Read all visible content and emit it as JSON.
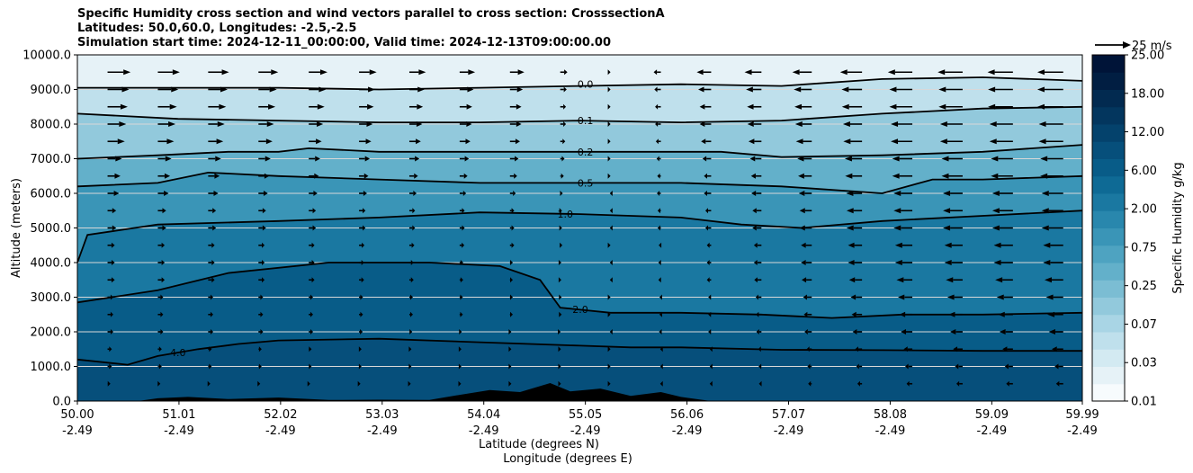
{
  "title": {
    "line1": "Specific Humidity cross section and wind vectors parallel to cross section: CrosssectionA",
    "line2": "Latitudes: 50.0,60.0, Longitudes: -2.5,-2.5",
    "line3": "Simulation start time: 2024-12-11_00:00:00, Valid time: 2024-12-13T09:00:00.00"
  },
  "colors": {
    "level_palette": [
      "#f7fbfd",
      "#e6f2f7",
      "#d3eaf2",
      "#bfe0ec",
      "#a9d5e5",
      "#92c9dc",
      "#7bbdd3",
      "#63b0ca",
      "#4ea3c1",
      "#3a95b7",
      "#2987ad",
      "#1a78a1",
      "#0e6a95",
      "#085c88",
      "#064f7b",
      "#04426c",
      "#03365e",
      "#022a50",
      "#011e42",
      "#001438"
    ],
    "terrain": "#000000",
    "contour": "#000000"
  },
  "chart_data": {
    "type": "heatmap",
    "title": "Specific Humidity cross section and wind vectors parallel to cross section: CrosssectionA",
    "xlabel_lat": "Latitude (degrees N)",
    "xlabel_lon": "Longitude (degrees E)",
    "ylabel": "Altitude (meters)",
    "xlim": [
      50.0,
      59.99
    ],
    "ylim": [
      0,
      10000
    ],
    "x_ticks": [
      {
        "lat": "50.00",
        "lon": "-2.49",
        "v": 50.0
      },
      {
        "lat": "51.01",
        "lon": "-2.49",
        "v": 51.01
      },
      {
        "lat": "52.02",
        "lon": "-2.49",
        "v": 52.02
      },
      {
        "lat": "53.03",
        "lon": "-2.49",
        "v": 53.03
      },
      {
        "lat": "54.04",
        "lon": "-2.49",
        "v": 54.04
      },
      {
        "lat": "55.05",
        "lon": "-2.49",
        "v": 55.05
      },
      {
        "lat": "56.06",
        "lon": "-2.49",
        "v": 56.06
      },
      {
        "lat": "57.07",
        "lon": "-2.49",
        "v": 57.07
      },
      {
        "lat": "58.08",
        "lon": "-2.49",
        "v": 58.08
      },
      {
        "lat": "59.09",
        "lon": "-2.49",
        "v": 59.09
      },
      {
        "lat": "59.99",
        "lon": "-2.49",
        "v": 59.99
      }
    ],
    "y_ticks": [
      {
        "v": 0,
        "label": "0.0"
      },
      {
        "v": 1000,
        "label": "1000.0"
      },
      {
        "v": 2000,
        "label": "2000.0"
      },
      {
        "v": 3000,
        "label": "3000.0"
      },
      {
        "v": 4000,
        "label": "4000.0"
      },
      {
        "v": 5000,
        "label": "5000.0"
      },
      {
        "v": 6000,
        "label": "6000.0"
      },
      {
        "v": 7000,
        "label": "7000.0"
      },
      {
        "v": 8000,
        "label": "8000.0"
      },
      {
        "v": 9000,
        "label": "9000.0"
      },
      {
        "v": 10000,
        "label": "10000.0"
      }
    ],
    "grid_y": true,
    "colorbar": {
      "label": "Specific Humidity g/kg",
      "tick_labels": [
        "0.01",
        "0.03",
        "0.07",
        "0.25",
        "0.75",
        "2.00",
        "6.00",
        "12.00",
        "18.00",
        "25.00"
      ],
      "n_levels": 20
    },
    "contour_lines": [
      {
        "level": "4.0",
        "label_at": [
          51.0,
          1400
        ],
        "points": [
          [
            50,
            1200
          ],
          [
            50.5,
            1050
          ],
          [
            50.8,
            1300
          ],
          [
            51.2,
            1500
          ],
          [
            51.6,
            1650
          ],
          [
            52,
            1750
          ],
          [
            53,
            1800
          ],
          [
            54,
            1700
          ],
          [
            55,
            1600
          ],
          [
            55.5,
            1550
          ],
          [
            56,
            1550
          ],
          [
            57,
            1480
          ],
          [
            58,
            1470
          ],
          [
            59,
            1450
          ],
          [
            59.99,
            1450
          ]
        ]
      },
      {
        "level": "2.0",
        "label_at": [
          55.0,
          2650
        ],
        "points": [
          [
            50,
            2850
          ],
          [
            50.8,
            3200
          ],
          [
            51.5,
            3700
          ],
          [
            52.5,
            4000
          ],
          [
            53.5,
            4000
          ],
          [
            54.2,
            3900
          ],
          [
            54.6,
            3500
          ],
          [
            54.8,
            2700
          ],
          [
            55.3,
            2550
          ],
          [
            56,
            2550
          ],
          [
            56.8,
            2500
          ],
          [
            57.5,
            2400
          ],
          [
            58.2,
            2500
          ],
          [
            59,
            2500
          ],
          [
            59.99,
            2550
          ]
        ]
      },
      {
        "level": "1.0",
        "label_at": [
          54.85,
          5400
        ],
        "points": [
          [
            50,
            4000
          ],
          [
            50.1,
            4800
          ],
          [
            50.8,
            5100
          ],
          [
            52,
            5200
          ],
          [
            53,
            5300
          ],
          [
            54,
            5450
          ],
          [
            55,
            5400
          ],
          [
            56,
            5300
          ],
          [
            56.6,
            5100
          ],
          [
            57.2,
            5000
          ],
          [
            58,
            5200
          ],
          [
            59,
            5350
          ],
          [
            59.99,
            5500
          ]
        ]
      },
      {
        "level": "0.5",
        "label_at": [
          55.05,
          6300
        ],
        "points": [
          [
            50,
            6200
          ],
          [
            50.8,
            6300
          ],
          [
            51.3,
            6600
          ],
          [
            52,
            6500
          ],
          [
            53,
            6400
          ],
          [
            54,
            6300
          ],
          [
            55,
            6300
          ],
          [
            56,
            6300
          ],
          [
            57,
            6200
          ],
          [
            58,
            6000
          ],
          [
            58.5,
            6400
          ],
          [
            59,
            6400
          ],
          [
            59.99,
            6500
          ]
        ]
      },
      {
        "level": "0.2",
        "label_at": [
          55.05,
          7200
        ],
        "points": [
          [
            50,
            7000
          ],
          [
            50.8,
            7100
          ],
          [
            51.5,
            7200
          ],
          [
            52,
            7200
          ],
          [
            52.3,
            7300
          ],
          [
            53,
            7200
          ],
          [
            54,
            7200
          ],
          [
            55,
            7200
          ],
          [
            56,
            7200
          ],
          [
            56.4,
            7200
          ],
          [
            57,
            7050
          ],
          [
            58,
            7100
          ],
          [
            59,
            7200
          ],
          [
            59.99,
            7400
          ]
        ]
      },
      {
        "level": "0.1",
        "label_at": [
          55.05,
          8100
        ],
        "points": [
          [
            50,
            8300
          ],
          [
            51,
            8150
          ],
          [
            52,
            8100
          ],
          [
            53,
            8050
          ],
          [
            54,
            8050
          ],
          [
            55,
            8100
          ],
          [
            56,
            8050
          ],
          [
            57,
            8100
          ],
          [
            58,
            8300
          ],
          [
            59,
            8450
          ],
          [
            59.99,
            8500
          ]
        ]
      },
      {
        "level": "0.0",
        "label_at": [
          55.05,
          9150
        ],
        "points": [
          [
            50,
            9050
          ],
          [
            51,
            9050
          ],
          [
            52,
            9050
          ],
          [
            53,
            9000
          ],
          [
            54,
            9050
          ],
          [
            55,
            9100
          ],
          [
            56,
            9150
          ],
          [
            57,
            9100
          ],
          [
            58,
            9300
          ],
          [
            59,
            9350
          ],
          [
            59.99,
            9250
          ]
        ]
      }
    ],
    "terrain_profile": [
      [
        50,
        0
      ],
      [
        50.6,
        0
      ],
      [
        50.8,
        80
      ],
      [
        51.1,
        120
      ],
      [
        51.5,
        60
      ],
      [
        52,
        100
      ],
      [
        52.5,
        30
      ],
      [
        53,
        40
      ],
      [
        53.5,
        30
      ],
      [
        53.8,
        180
      ],
      [
        54.1,
        320
      ],
      [
        54.4,
        260
      ],
      [
        54.7,
        520
      ],
      [
        54.9,
        280
      ],
      [
        55.2,
        360
      ],
      [
        55.5,
        150
      ],
      [
        55.8,
        260
      ],
      [
        56.0,
        120
      ],
      [
        56.3,
        0
      ],
      [
        57.8,
        0
      ],
      [
        58.0,
        0
      ],
      [
        59.99,
        0
      ]
    ],
    "wind": {
      "reference_label": "25 m/s",
      "reference_speed": 25,
      "levels_m": [
        500,
        1000,
        1500,
        2000,
        2500,
        3000,
        3500,
        4000,
        4500,
        5000,
        5500,
        6000,
        6500,
        7000,
        7500,
        8000,
        8500,
        9000,
        9500
      ],
      "columns_lat": [
        50.3,
        50.8,
        51.3,
        51.8,
        52.3,
        52.8,
        53.3,
        53.8,
        54.3,
        54.8,
        55.3,
        55.8,
        56.3,
        56.8,
        57.3,
        57.8,
        58.3,
        58.8,
        59.3,
        59.8
      ],
      "profile_u_by_lat": [
        {
          "lat": 50.3,
          "u": [
            2,
            3,
            3,
            4,
            4,
            4,
            5,
            5,
            5,
            6,
            6,
            8,
            9,
            10,
            12,
            13,
            14,
            15,
            16
          ]
        },
        {
          "lat": 52.3,
          "u": [
            1,
            2,
            2,
            3,
            3,
            3,
            4,
            4,
            4,
            5,
            5,
            6,
            7,
            8,
            9,
            10,
            11,
            12,
            13
          ]
        },
        {
          "lat": 54.3,
          "u": [
            1,
            1,
            1,
            1,
            2,
            2,
            2,
            2,
            3,
            3,
            3,
            4,
            5,
            6,
            7,
            8,
            8,
            9,
            10
          ]
        },
        {
          "lat": 56.3,
          "u": [
            -1,
            -1,
            -1,
            -2,
            -2,
            -2,
            -3,
            -3,
            -3,
            -4,
            -4,
            -5,
            -5,
            -6,
            -7,
            -8,
            -8,
            -9,
            -10
          ]
        },
        {
          "lat": 58.3,
          "u": [
            -4,
            -5,
            -6,
            -8,
            -9,
            -10,
            -11,
            -12,
            -12,
            -13,
            -13,
            -13,
            -14,
            -14,
            -15,
            -15,
            -16,
            -16,
            -17
          ]
        },
        {
          "lat": 59.8,
          "u": [
            -5,
            -6,
            -8,
            -10,
            -11,
            -12,
            -13,
            -14,
            -14,
            -15,
            -15,
            -15,
            -16,
            -16,
            -17,
            -17,
            -18,
            -18,
            -18
          ]
        }
      ]
    }
  }
}
